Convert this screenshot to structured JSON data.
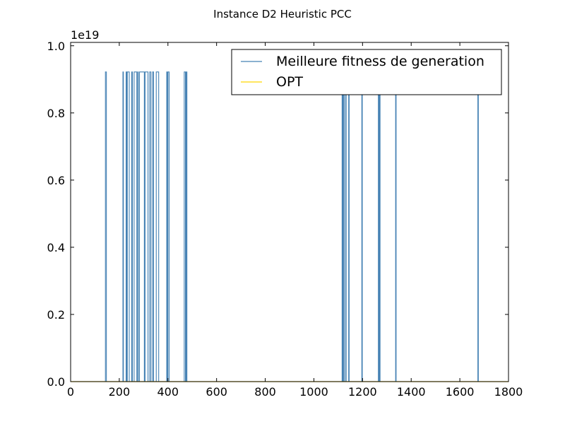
{
  "chart_data": {
    "type": "line",
    "title": "Instance D2 Heuristic PCC",
    "xlabel": "",
    "ylabel": "",
    "y_offset_label": "1e19",
    "xlim": [
      0,
      1800
    ],
    "ylim": [
      0,
      1.01
    ],
    "y_scale_factor": 1e+19,
    "x_ticks": [
      0,
      200,
      400,
      600,
      800,
      1000,
      1200,
      1400,
      1600,
      1800
    ],
    "x_tick_labels": [
      "0",
      "200",
      "400",
      "600",
      "800",
      "1000",
      "1200",
      "1400",
      "1600",
      "1800"
    ],
    "y_ticks": [
      0.0,
      0.2,
      0.4,
      0.6,
      0.8,
      1.0
    ],
    "y_tick_labels": [
      "0.0",
      "0.2",
      "0.4",
      "0.6",
      "0.8",
      "1.0"
    ],
    "grid": false,
    "legend_position": "top-right",
    "series": [
      {
        "name": "Meilleure fitness de generation",
        "color": "#4682b4",
        "pulses": [
          [
            143,
            147,
            0.922
          ],
          [
            215,
            217,
            0.922
          ],
          [
            228,
            230,
            0.922
          ],
          [
            233,
            241,
            0.922
          ],
          [
            251,
            254,
            0.922
          ],
          [
            261,
            272,
            0.922
          ],
          [
            276,
            278,
            0.922
          ],
          [
            283,
            303,
            0.922
          ],
          [
            306,
            318,
            0.922
          ],
          [
            325,
            330,
            0.922
          ],
          [
            337,
            341,
            0.922
          ],
          [
            352,
            362,
            0.922
          ],
          [
            395,
            398,
            0.922
          ],
          [
            400,
            405,
            0.922
          ],
          [
            467,
            472,
            0.922
          ],
          [
            475,
            478,
            0.922
          ],
          [
            1116,
            1118,
            0.86
          ],
          [
            1120,
            1123,
            0.86
          ],
          [
            1128,
            1133,
            0.86
          ],
          [
            1143,
            1145,
            0.86
          ],
          [
            1197,
            1199,
            0.86
          ],
          [
            1265,
            1267,
            0.86
          ],
          [
            1270,
            1272,
            0.86
          ],
          [
            1336,
            1338,
            0.86
          ],
          [
            1674,
            1676,
            0.86
          ]
        ]
      },
      {
        "name": "OPT",
        "color": "#ffd700",
        "values": [
          [
            0,
            0
          ],
          [
            1800,
            0
          ]
        ]
      }
    ]
  }
}
